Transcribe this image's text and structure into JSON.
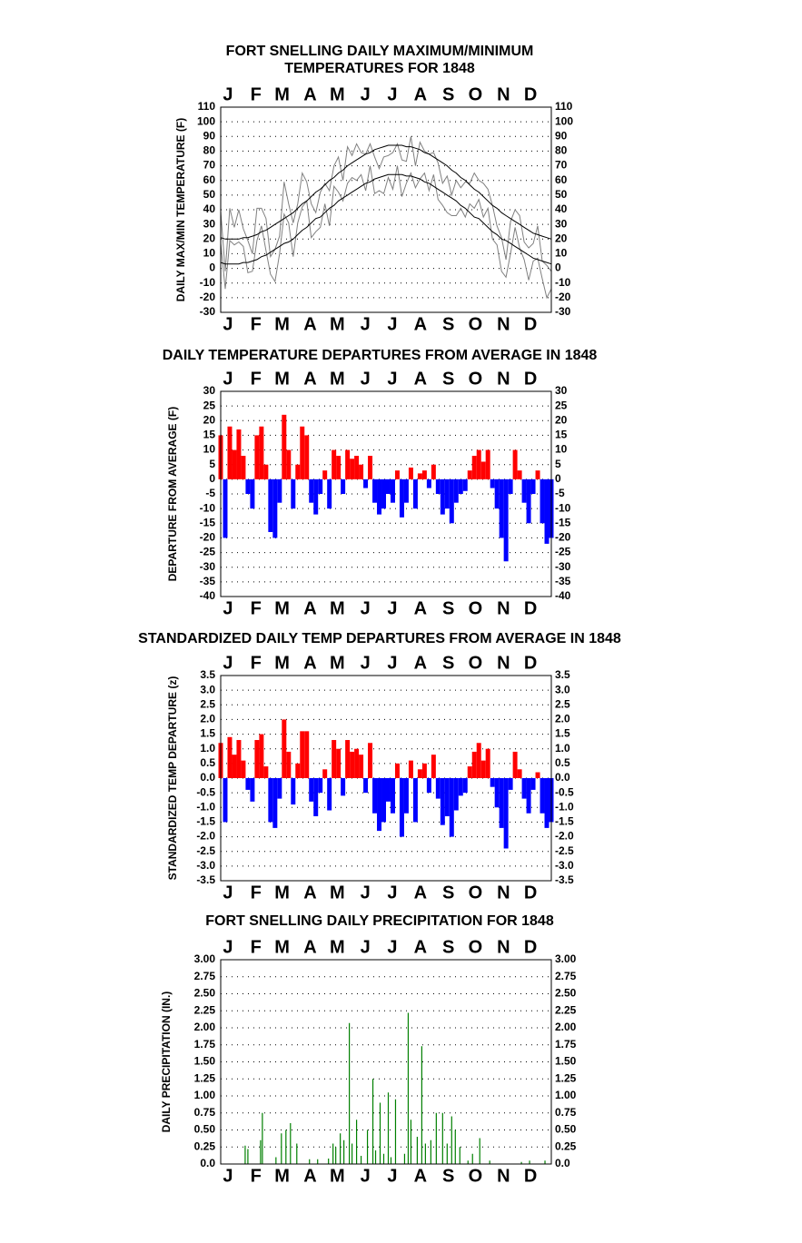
{
  "chart_data": [
    {
      "type": "line",
      "title": [
        "FORT SNELLING DAILY MAXIMUM/MINIMUM",
        "TEMPERATURES FOR 1848"
      ],
      "ylabel": "DAILY MAX/MIN TEMPERATURE (F)",
      "categories": [
        "J",
        "F",
        "M",
        "A",
        "M",
        "J",
        "J",
        "A",
        "S",
        "O",
        "N",
        "D"
      ],
      "x": [
        1,
        6,
        11,
        16,
        21,
        26,
        31,
        36,
        41,
        46,
        51,
        56,
        61,
        66,
        71,
        76,
        81,
        86,
        91,
        96,
        101,
        106,
        111,
        116,
        121,
        126,
        131,
        136,
        141,
        146,
        151,
        156,
        161,
        166,
        171,
        176,
        181,
        186,
        191,
        196,
        201,
        206,
        211,
        216,
        221,
        226,
        231,
        236,
        241,
        246,
        251,
        256,
        261,
        266,
        271,
        276,
        281,
        286,
        291,
        296,
        301,
        306,
        311,
        316,
        321,
        326,
        331,
        336,
        341,
        346,
        351,
        356,
        361,
        366
      ],
      "xlim": [
        1,
        366
      ],
      "series": [
        {
          "color": "#808080",
          "values": [
            39,
            -2,
            41,
            28,
            40,
            27,
            19,
            10,
            41,
            41,
            34,
            8,
            13,
            22,
            59,
            44,
            31,
            44,
            65,
            59,
            44,
            38,
            52,
            58,
            53,
            70,
            76,
            60,
            83,
            77,
            85,
            79,
            78,
            85,
            76,
            68,
            76,
            77,
            79,
            85,
            74,
            73,
            90,
            70,
            86,
            80,
            78,
            79,
            72,
            58,
            63,
            50,
            60,
            55,
            59,
            58,
            65,
            60,
            58,
            54,
            43,
            29,
            21,
            6,
            32,
            40,
            36,
            18,
            14,
            17,
            29,
            5,
            2,
            -2
          ]
        },
        {
          "color": "#808080",
          "values": [
            17,
            -14,
            19,
            16,
            18,
            15,
            -3,
            -2,
            19,
            29,
            12,
            -4,
            -9,
            10,
            37,
            31,
            8,
            31,
            42,
            46,
            21,
            25,
            28,
            44,
            29,
            56,
            52,
            46,
            58,
            62,
            60,
            64,
            53,
            70,
            51,
            53,
            51,
            62,
            54,
            70,
            49,
            58,
            65,
            55,
            61,
            65,
            53,
            64,
            47,
            43,
            38,
            36,
            36,
            41,
            35,
            44,
            41,
            47,
            35,
            41,
            20,
            16,
            -2,
            -6,
            10,
            28,
            14,
            6,
            -8,
            5,
            7,
            -7,
            -20,
            -14
          ]
        },
        {
          "color": "#000000",
          "values": [
            21,
            20,
            20,
            20,
            20,
            21,
            21,
            22,
            23,
            25,
            26,
            28,
            30,
            32,
            34,
            36,
            38,
            41,
            44,
            46,
            49,
            52,
            54,
            57,
            60,
            62,
            65,
            67,
            70,
            72,
            74,
            76,
            78,
            79,
            81,
            82,
            83,
            84,
            84,
            84,
            84,
            83,
            83,
            82,
            81,
            79,
            78,
            76,
            74,
            72,
            70,
            67,
            65,
            62,
            60,
            57,
            54,
            52,
            49,
            46,
            43,
            41,
            38,
            36,
            34,
            32,
            30,
            28,
            26,
            24,
            23,
            22,
            21,
            20
          ]
        },
        {
          "color": "#000000",
          "values": [
            4,
            3,
            3,
            3,
            3,
            4,
            4,
            5,
            6,
            8,
            9,
            11,
            13,
            15,
            17,
            18,
            20,
            23,
            26,
            28,
            31,
            34,
            35,
            38,
            41,
            43,
            46,
            48,
            50,
            52,
            54,
            56,
            58,
            59,
            61,
            62,
            63,
            64,
            64,
            64,
            64,
            63,
            63,
            62,
            61,
            59,
            58,
            56,
            54,
            52,
            50,
            48,
            46,
            43,
            41,
            38,
            35,
            34,
            31,
            28,
            25,
            23,
            20,
            19,
            17,
            15,
            13,
            11,
            9,
            7,
            6,
            5,
            4,
            3
          ]
        }
      ],
      "ylim": [
        -30,
        110
      ],
      "yticks": [
        -30,
        -20,
        -10,
        0,
        10,
        20,
        30,
        40,
        50,
        60,
        70,
        80,
        90,
        100,
        110
      ],
      "grid": true
    },
    {
      "type": "bar",
      "title": [
        "DAILY TEMPERATURE DEPARTURES FROM AVERAGE IN 1848"
      ],
      "ylabel": "DEPARTURE FROM AVERAGE (F)",
      "categories": [
        "J",
        "F",
        "M",
        "A",
        "M",
        "J",
        "J",
        "A",
        "S",
        "O",
        "N",
        "D"
      ],
      "x": [
        1,
        6,
        11,
        16,
        21,
        26,
        31,
        36,
        41,
        46,
        51,
        56,
        61,
        66,
        71,
        76,
        81,
        86,
        91,
        96,
        101,
        106,
        111,
        116,
        121,
        126,
        131,
        136,
        141,
        146,
        151,
        156,
        161,
        166,
        171,
        176,
        181,
        186,
        191,
        196,
        201,
        206,
        211,
        216,
        221,
        226,
        231,
        236,
        241,
        246,
        251,
        256,
        261,
        266,
        271,
        276,
        281,
        286,
        291,
        296,
        301,
        306,
        311,
        316,
        321,
        326,
        331,
        336,
        341,
        346,
        351,
        356,
        361,
        366
      ],
      "xlim": [
        1,
        366
      ],
      "values": [
        15,
        -20,
        18,
        10,
        17,
        8,
        -5,
        -10,
        15,
        18,
        5,
        -18,
        -20,
        -8,
        22,
        10,
        -10,
        5,
        18,
        15,
        -8,
        -12,
        -5,
        3,
        -10,
        10,
        8,
        -5,
        10,
        7,
        8,
        5,
        -3,
        8,
        -8,
        -12,
        -10,
        -5,
        -8,
        3,
        -13,
        -8,
        4,
        -10,
        2,
        3,
        -3,
        5,
        -5,
        -12,
        -10,
        -15,
        -8,
        -5,
        -4,
        3,
        8,
        10,
        6,
        10,
        -3,
        -10,
        -20,
        -28,
        -5,
        10,
        3,
        -8,
        -15,
        -5,
        3,
        -15,
        -22,
        -20
      ],
      "color": "#ff0000",
      "negative_color": "#0000ff",
      "ylim": [
        -40,
        30
      ],
      "yticks": [
        -40,
        -35,
        -30,
        -25,
        -20,
        -15,
        -10,
        -5,
        0,
        5,
        10,
        15,
        20,
        25,
        30
      ],
      "grid": true
    },
    {
      "type": "bar",
      "title": [
        "STANDARDIZED DAILY TEMP DEPARTURES FROM AVERAGE IN 1848"
      ],
      "ylabel": "STANDARDIZED TEMP DEPARTURE (z)",
      "categories": [
        "J",
        "F",
        "M",
        "A",
        "M",
        "J",
        "J",
        "A",
        "S",
        "O",
        "N",
        "D"
      ],
      "x": [
        1,
        6,
        11,
        16,
        21,
        26,
        31,
        36,
        41,
        46,
        51,
        56,
        61,
        66,
        71,
        76,
        81,
        86,
        91,
        96,
        101,
        106,
        111,
        116,
        121,
        126,
        131,
        136,
        141,
        146,
        151,
        156,
        161,
        166,
        171,
        176,
        181,
        186,
        191,
        196,
        201,
        206,
        211,
        216,
        221,
        226,
        231,
        236,
        241,
        246,
        251,
        256,
        261,
        266,
        271,
        276,
        281,
        286,
        291,
        296,
        301,
        306,
        311,
        316,
        321,
        326,
        331,
        336,
        341,
        346,
        351,
        356,
        361,
        366
      ],
      "xlim": [
        1,
        366
      ],
      "values": [
        1.2,
        -1.5,
        1.4,
        0.8,
        1.3,
        0.6,
        -0.4,
        -0.8,
        1.3,
        1.5,
        0.4,
        -1.5,
        -1.7,
        -0.7,
        2.0,
        0.9,
        -0.9,
        0.5,
        1.6,
        1.6,
        -0.8,
        -1.3,
        -0.5,
        0.3,
        -1.1,
        1.3,
        1.0,
        -0.6,
        1.3,
        0.9,
        1.0,
        0.8,
        -0.5,
        1.2,
        -1.2,
        -1.8,
        -1.5,
        -0.8,
        -1.2,
        0.5,
        -2.0,
        -1.2,
        0.6,
        -1.5,
        0.3,
        0.5,
        -0.5,
        0.8,
        -0.7,
        -1.6,
        -1.3,
        -2.0,
        -1.1,
        -0.6,
        -0.5,
        0.4,
        0.9,
        1.2,
        0.6,
        1.0,
        -0.3,
        -1.0,
        -1.7,
        -2.4,
        -0.4,
        0.9,
        0.3,
        -0.7,
        -1.2,
        -0.4,
        0.2,
        -1.2,
        -1.7,
        -1.5
      ],
      "color": "#ff0000",
      "negative_color": "#0000ff",
      "ylim": [
        -3.5,
        3.5
      ],
      "yticks": [
        -3.5,
        {
          "value": -3,
          "label": "-3.0"
        },
        -2.5,
        {
          "value": -2,
          "label": "-2.0"
        },
        -1.5,
        {
          "value": -1,
          "label": "-1.0"
        },
        -0.5,
        {
          "value": 0,
          "label": "0.0"
        },
        0.5,
        {
          "value": 1,
          "label": "1.0"
        },
        1.5,
        {
          "value": 2,
          "label": "2.0"
        },
        2.5,
        {
          "value": 3,
          "label": "3.0"
        },
        3.5
      ],
      "grid": true
    },
    {
      "type": "bar",
      "title": [
        "FORT SNELLING DAILY PRECIPITATION FOR 1848"
      ],
      "ylabel": "DAILY PRECIPITATION (IN.)",
      "categories": [
        "J",
        "F",
        "M",
        "A",
        "M",
        "J",
        "J",
        "A",
        "S",
        "O",
        "N",
        "D"
      ],
      "x": [
        28,
        31,
        45,
        47,
        62,
        68,
        73,
        78,
        85,
        99,
        108,
        120,
        125,
        128,
        133,
        137,
        143,
        146,
        151,
        156,
        163,
        169,
        172,
        177,
        181,
        186,
        189,
        194,
        204,
        208,
        211,
        218,
        223,
        227,
        233,
        239,
        246,
        251,
        256,
        260,
        265,
        274,
        279,
        287,
        298,
        333,
        342,
        359
      ],
      "xlim": [
        1,
        366
      ],
      "values": [
        0.27,
        0.22,
        0.35,
        0.75,
        0.1,
        0.45,
        0.5,
        0.6,
        0.3,
        0.07,
        0.07,
        0.08,
        0.3,
        0.25,
        0.45,
        0.35,
        2.07,
        0.3,
        0.65,
        0.12,
        0.5,
        1.25,
        0.2,
        0.9,
        0.15,
        1.05,
        0.1,
        0.95,
        0.15,
        2.22,
        0.65,
        0.4,
        1.73,
        0.3,
        0.35,
        0.75,
        0.75,
        0.3,
        0.7,
        0.5,
        0.25,
        0.05,
        0.15,
        0.38,
        0.05,
        0.03,
        0.05,
        0.05
      ],
      "color": "#008000",
      "ylim": [
        0,
        3
      ],
      "yticks": [
        {
          "value": 0,
          "label": "0.0"
        },
        0.25,
        {
          "value": 0.5,
          "label": "0.50"
        },
        0.75,
        {
          "value": 1,
          "label": "1.00"
        },
        1.25,
        {
          "value": 1.5,
          "label": "1.50"
        },
        1.75,
        {
          "value": 2,
          "label": "2.00"
        },
        2.25,
        {
          "value": 2.5,
          "label": "2.50"
        },
        2.75,
        {
          "value": 3,
          "label": "3.00"
        }
      ],
      "grid": true
    }
  ]
}
